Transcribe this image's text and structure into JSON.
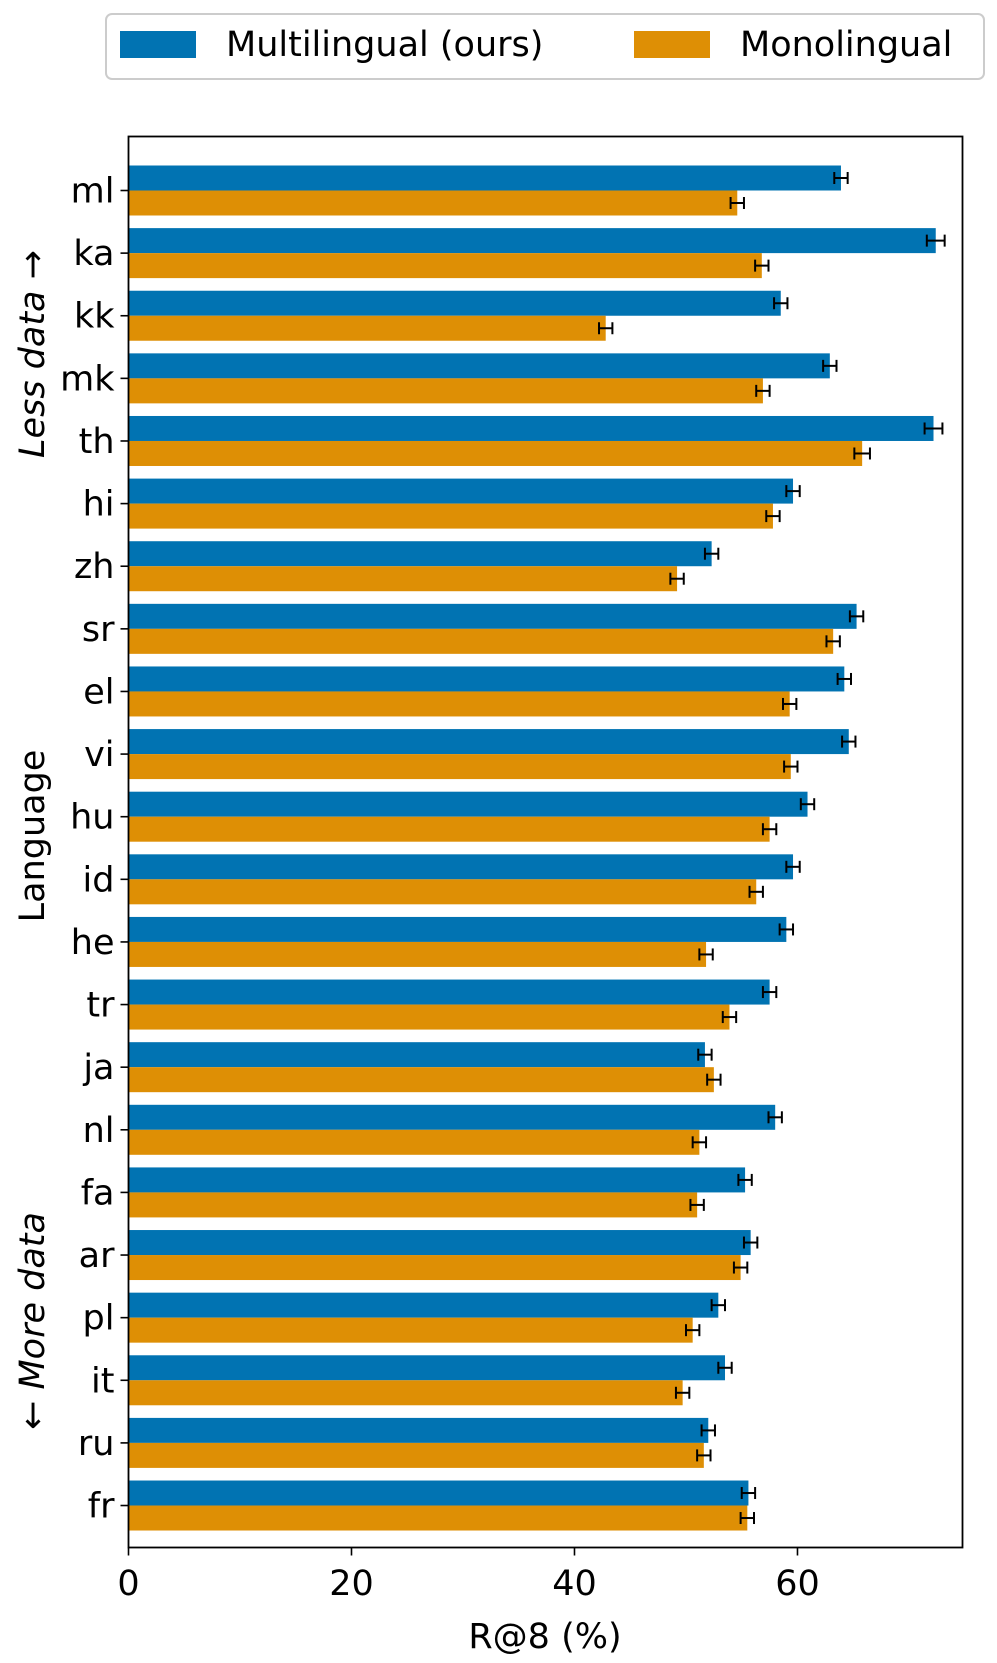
{
  "legend": {
    "position": "top-center",
    "items": [
      {
        "label": "Multilingual (ours)",
        "color": "#0173b2"
      },
      {
        "label": "Monolingual",
        "color": "#de8f05"
      }
    ]
  },
  "chart_data": {
    "type": "bar",
    "orientation": "horizontal",
    "xlabel": "R@8 (%)",
    "ylabel": "Language",
    "y_annotation_top": "Less data →",
    "y_annotation_bottom": "← More data",
    "xlim": [
      0,
      74.8
    ],
    "xticks": [
      0,
      20,
      40,
      60
    ],
    "grid": false,
    "categories": [
      "ml",
      "ka",
      "kk",
      "mk",
      "th",
      "hi",
      "zh",
      "sr",
      "el",
      "vi",
      "hu",
      "id",
      "he",
      "tr",
      "ja",
      "nl",
      "fa",
      "ar",
      "pl",
      "it",
      "ru",
      "fr"
    ],
    "series": [
      {
        "name": "Multilingual (ours)",
        "color": "#0173b2",
        "values": [
          63.9,
          72.4,
          58.5,
          62.9,
          72.2,
          59.6,
          52.3,
          65.3,
          64.2,
          64.6,
          60.9,
          59.6,
          59.0,
          57.5,
          51.7,
          58.0,
          55.3,
          55.8,
          52.9,
          53.5,
          52.0,
          55.6
        ],
        "errors": [
          0.6,
          0.8,
          0.6,
          0.6,
          0.8,
          0.6,
          0.6,
          0.6,
          0.6,
          0.6,
          0.6,
          0.6,
          0.6,
          0.6,
          0.6,
          0.6,
          0.6,
          0.6,
          0.6,
          0.6,
          0.6,
          0.6
        ]
      },
      {
        "name": "Monolingual",
        "color": "#de8f05",
        "values": [
          54.6,
          56.8,
          42.8,
          56.9,
          65.8,
          57.8,
          49.2,
          63.2,
          59.3,
          59.4,
          57.5,
          56.3,
          51.8,
          53.9,
          52.5,
          51.2,
          51.0,
          54.9,
          50.6,
          49.7,
          51.6,
          55.5
        ],
        "errors": [
          0.6,
          0.6,
          0.6,
          0.6,
          0.7,
          0.6,
          0.6,
          0.6,
          0.6,
          0.6,
          0.6,
          0.6,
          0.6,
          0.6,
          0.6,
          0.6,
          0.6,
          0.6,
          0.6,
          0.6,
          0.6,
          0.6
        ]
      }
    ]
  }
}
